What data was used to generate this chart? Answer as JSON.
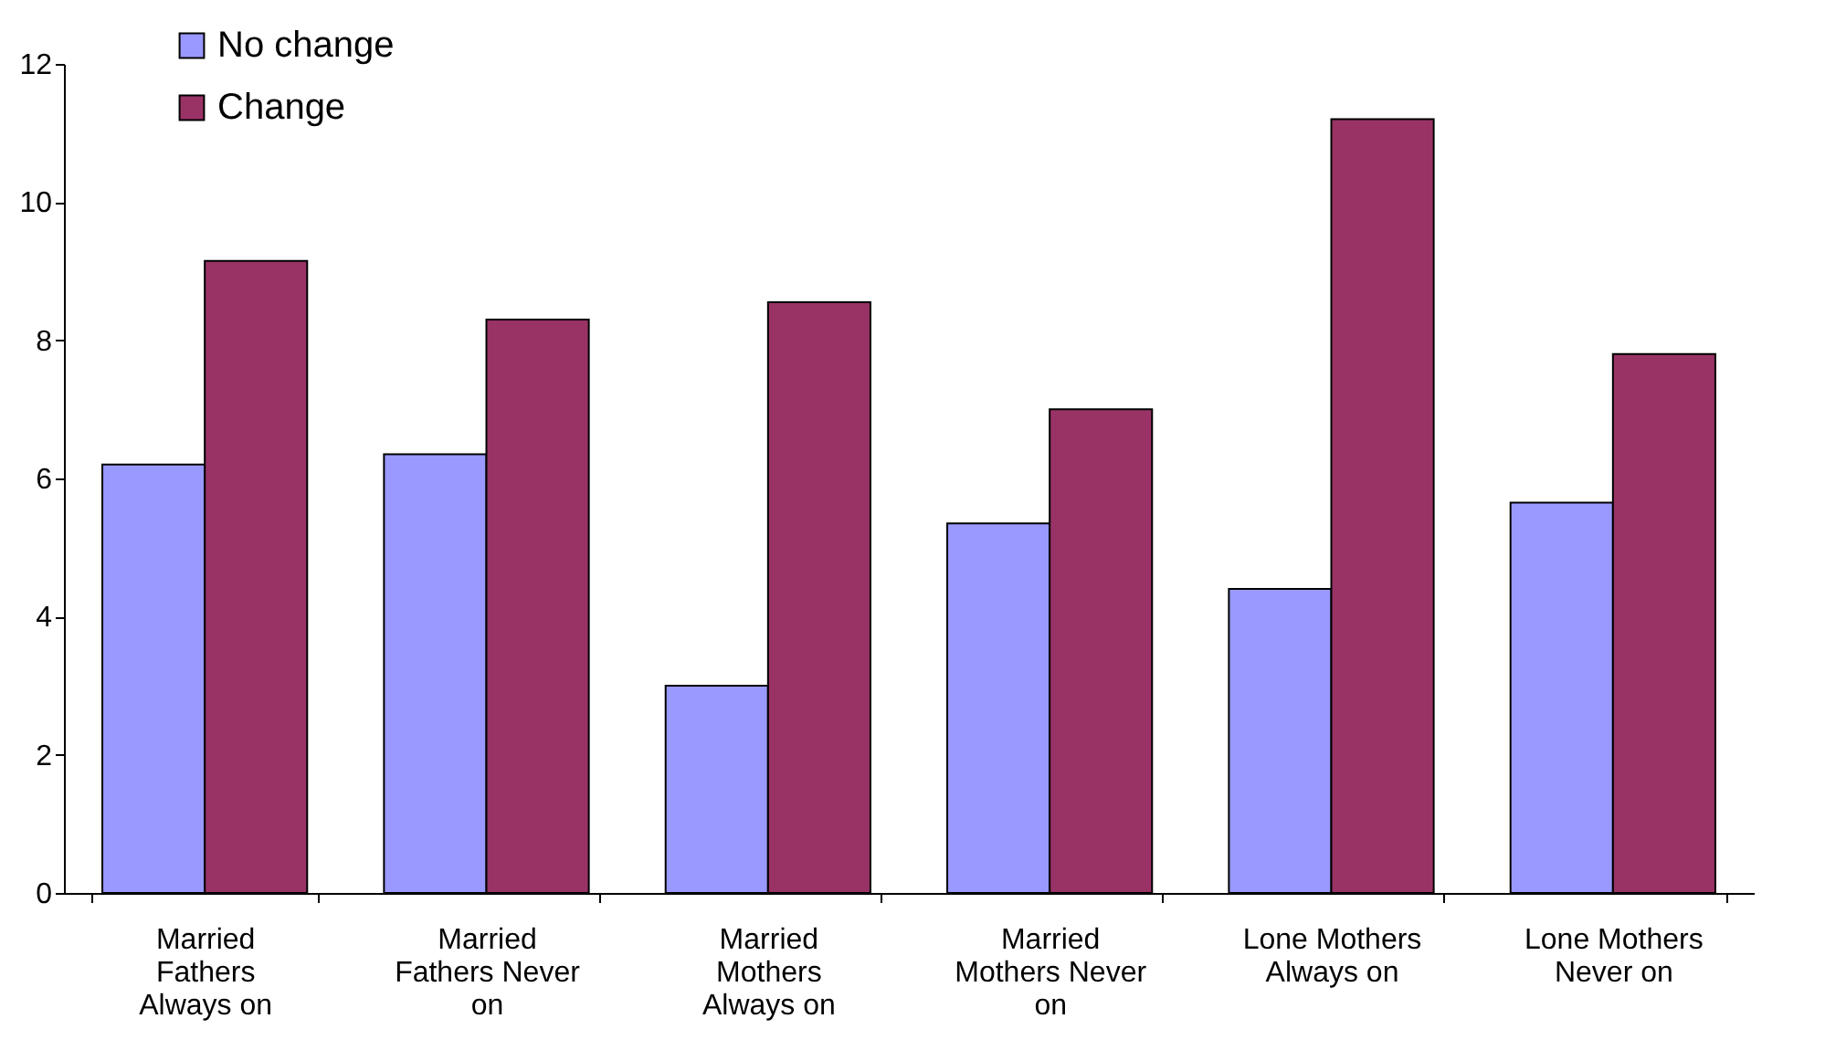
{
  "chart_data": {
    "type": "bar",
    "categories": [
      "Married\nFathers\nAlways on",
      "Married\nFathers Never\non",
      "Married\nMothers\nAlways on",
      "Married\nMothers Never\non",
      "Lone Mothers\nAlways on",
      "Lone Mothers\nNever on"
    ],
    "series": [
      {
        "name": "No change",
        "color": "#9999ff",
        "values": [
          6.2,
          6.35,
          3.0,
          5.35,
          4.4,
          5.65
        ]
      },
      {
        "name": "Change",
        "color": "#993366",
        "values": [
          9.15,
          8.3,
          8.55,
          7.0,
          11.2,
          7.8
        ]
      }
    ],
    "ylim": [
      0,
      12
    ],
    "yticks": [
      0,
      2,
      4,
      6,
      8,
      10,
      12
    ],
    "grid": false,
    "legend": "top left"
  }
}
